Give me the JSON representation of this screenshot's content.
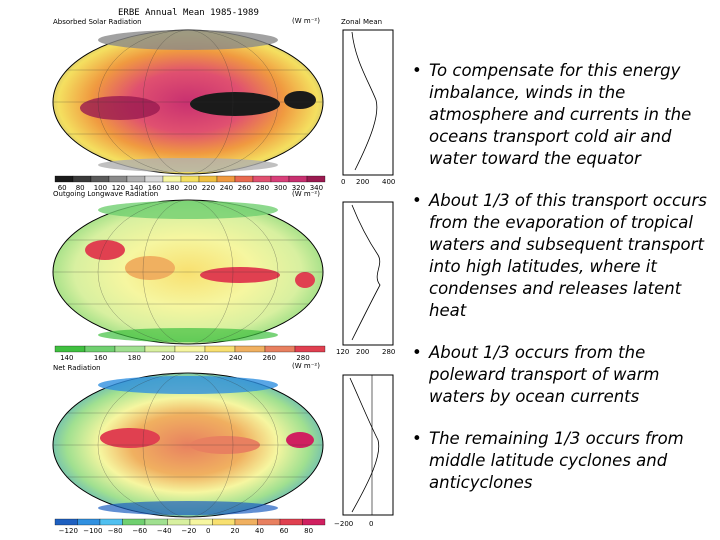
{
  "figure": {
    "title": "ERBE Annual Mean 1985-1989",
    "zonal_label": "Zonal Mean",
    "panels": [
      {
        "name": "Absorbed Solar Radiation",
        "units": "(W m⁻²)",
        "colorbar_ticks": [
          "60",
          "80",
          "100",
          "120",
          "140",
          "160",
          "180",
          "200",
          "220",
          "240",
          "260",
          "280",
          "300",
          "320",
          "340"
        ],
        "zonal_ticks": [
          "0",
          "200",
          "400"
        ]
      },
      {
        "name": "Outgoing Longwave Radiation",
        "units": "(W m⁻²)",
        "colorbar_ticks": [
          "140",
          "160",
          "180",
          "200",
          "220",
          "240",
          "260",
          "280"
        ],
        "zonal_ticks": [
          "120",
          "200",
          "280"
        ]
      },
      {
        "name": "Net Radiation",
        "units": "(W m⁻²)",
        "colorbar_ticks": [
          "−120",
          "−100",
          "−80",
          "−60",
          "−40",
          "−20",
          "0",
          "20",
          "40",
          "60",
          "80"
        ],
        "zonal_ticks": [
          "−200",
          "0"
        ]
      }
    ]
  },
  "bullets": [
    "To compensate for this energy imbalance, winds in the atmosphere and currents in the oceans transport cold air and water toward the equator",
    "About 1/3 of this transport occurs from the evaporation of tropical waters and subsequent transport into high latitudes, where it condenses and releases latent heat",
    "About 1/3 occurs from the poleward transport of warm waters by ocean currents",
    "The remaining 1/3 occurs from middle latitude cyclones and anticyclones"
  ],
  "colors": {
    "solar_scale": [
      "#1a1a1a",
      "#3a3a3a",
      "#5a5a5a",
      "#8a8a8a",
      "#b0b0b0",
      "#d8d8d8",
      "#f6f6a0",
      "#f4e060",
      "#f0c040",
      "#f09a40",
      "#e86a50",
      "#e05070",
      "#d8407a",
      "#c83070",
      "#9a1a50"
    ],
    "olr_scale": [
      "#40c040",
      "#70d070",
      "#a0e090",
      "#d8f0a0",
      "#f6f6a0",
      "#f8e070",
      "#f0b060",
      "#e88060",
      "#e04050"
    ],
    "net_scale": [
      "#1e60c0",
      "#3090e0",
      "#50c0f0",
      "#70d070",
      "#a0e090",
      "#d8f0a0",
      "#f6f6a0",
      "#f8e070",
      "#f0b060",
      "#e88060",
      "#e04050",
      "#d02060"
    ]
  }
}
